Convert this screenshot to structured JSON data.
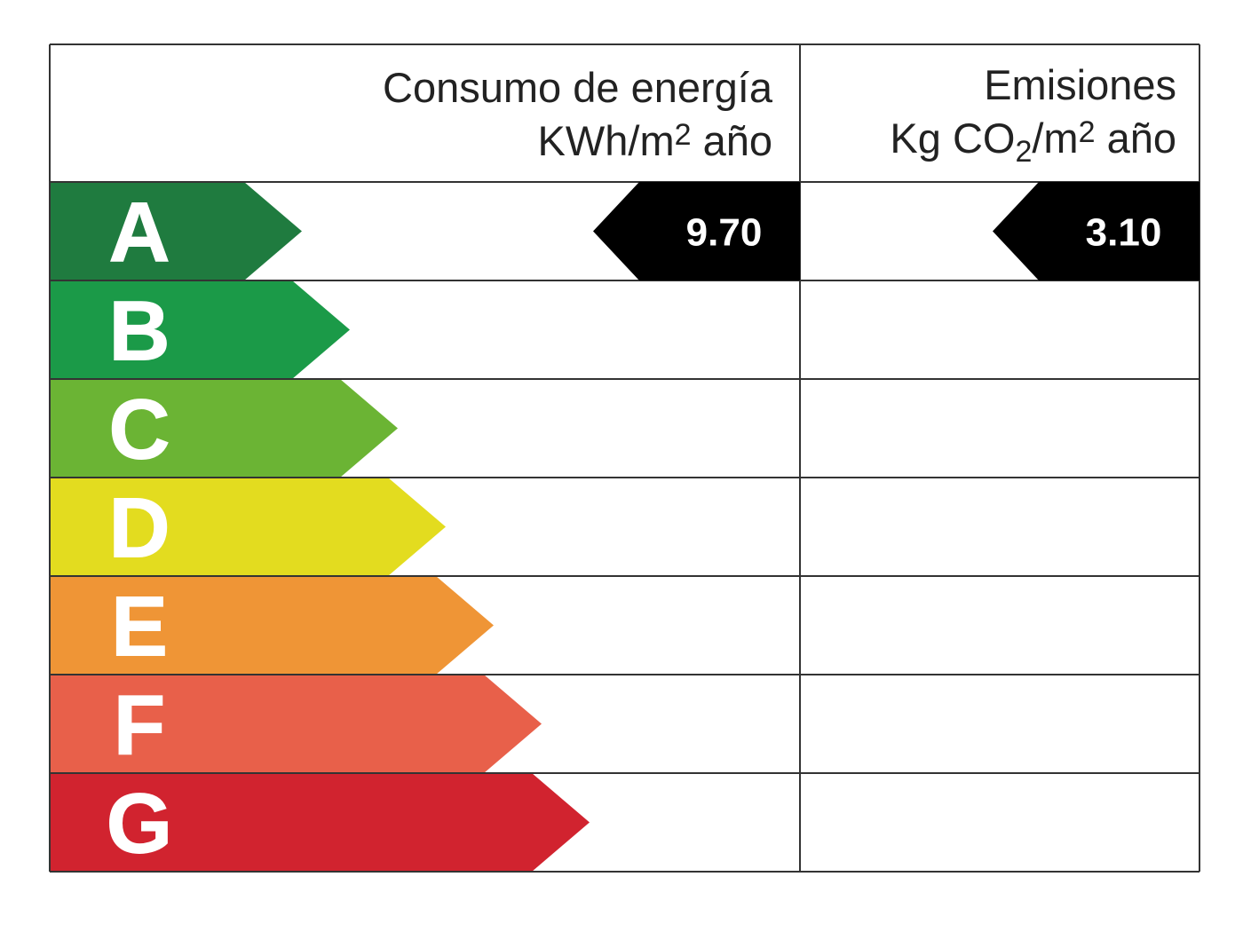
{
  "header": {
    "energy": {
      "title": "Consumo de energía",
      "unit": [
        "KWh/m",
        "2",
        " año"
      ]
    },
    "emissions": {
      "title": "Emisiones",
      "unit": [
        "Kg CO",
        "2",
        "/m",
        "2",
        " año"
      ]
    }
  },
  "ratings": [
    {
      "letter": "A",
      "color": "#1f7b3f"
    },
    {
      "letter": "B",
      "color": "#1b9a48"
    },
    {
      "letter": "C",
      "color": "#6bb434"
    },
    {
      "letter": "D",
      "color": "#e3dc1f"
    },
    {
      "letter": "E",
      "color": "#ef9536"
    },
    {
      "letter": "F",
      "color": "#e8604a"
    },
    {
      "letter": "G",
      "color": "#d1232f"
    }
  ],
  "energy": {
    "rating": "A",
    "value": "9.70"
  },
  "emissions": {
    "rating": "A",
    "value": "3.10"
  }
}
